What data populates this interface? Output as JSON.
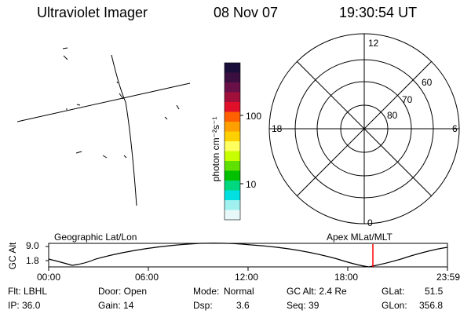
{
  "header": {
    "instrument": "Ultraviolet Imager",
    "date": "08 Nov 07",
    "time": "19:30:54 UT"
  },
  "colorbar": {
    "ticks": [
      "100",
      "10"
    ],
    "label": "photon cm⁻²s⁻¹",
    "colors": [
      "#1a0f3a",
      "#3a0f40",
      "#6a1048",
      "#a0103a",
      "#e0102a",
      "#ff6000",
      "#ffa000",
      "#ffd000",
      "#ffff60",
      "#c8ff00",
      "#60e000",
      "#00c000",
      "#00d880",
      "#00e0e0",
      "#a0f0f0",
      "#e8f8f8"
    ]
  },
  "polar": {
    "lat_labels": [
      "80",
      "70",
      "60"
    ],
    "mlt_labels": {
      "top": "12",
      "bottom": "0",
      "left": "18",
      "right": "6"
    }
  },
  "timeline": {
    "title_left": "Geographic Lat/Lon",
    "title_right": "Apex MLat/MLT",
    "ylabel": "GC Alt",
    "ytick_high": "9.0",
    "ytick_low": "1.8",
    "xticks": [
      "00:00",
      "06:00",
      "12:00",
      "18:00",
      "23:59"
    ],
    "marker_color": "#ff0000"
  },
  "status": {
    "flt": "Flt: LBHL",
    "ip": "IP: 36.0",
    "door": "Door: Open",
    "gain": "Gain: 14",
    "mode_label": "Mode:",
    "mode_value": "Normal",
    "dsp_label": "Dsp:",
    "dsp_value": "3.6",
    "gcalt": "GC Alt: 2.4 Re",
    "seq": "Seq: 39",
    "glat_label": "GLat:",
    "glat_value": "51.5",
    "glon_label": "GLon:",
    "glon_value": "356.8"
  }
}
